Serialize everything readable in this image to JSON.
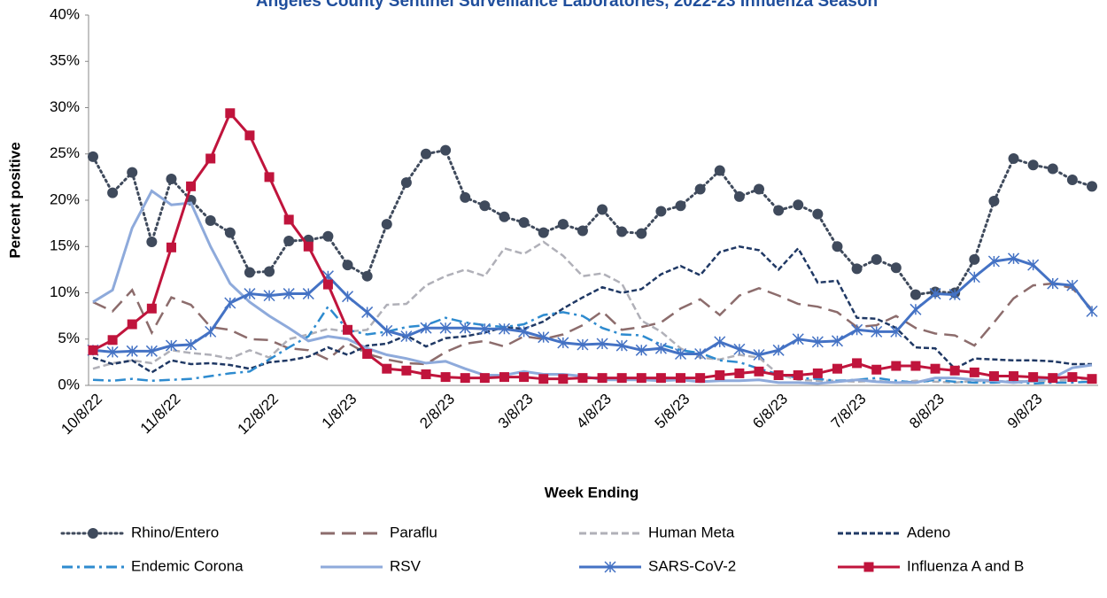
{
  "chart_data": {
    "type": "line",
    "title": "Angeles County Sentinel Surveillance Laboratories, 2022-23 Influenza Season",
    "y_label": "Percent positive",
    "x_label": "Week Ending",
    "categories": [
      "10/8/22",
      null,
      null,
      null,
      "11/8/22",
      null,
      null,
      null,
      null,
      "12/8/22",
      null,
      null,
      null,
      "1/8/23",
      null,
      null,
      null,
      null,
      "2/8/23",
      null,
      null,
      null,
      "3/8/23",
      null,
      null,
      null,
      "4/8/23",
      null,
      null,
      null,
      "5/8/23",
      null,
      null,
      null,
      null,
      "6/8/23",
      null,
      null,
      null,
      "7/8/23",
      null,
      null,
      null,
      "8/8/23",
      null,
      null,
      null,
      null,
      "9/8/23",
      null,
      null,
      null
    ],
    "ylim": [
      0,
      40
    ],
    "yticks": [
      {
        "value": 0,
        "label": "0%"
      },
      {
        "value": 5,
        "label": "5%"
      },
      {
        "value": 10,
        "label": "10%"
      },
      {
        "value": 15,
        "label": "15%"
      },
      {
        "value": 20,
        "label": "20%"
      },
      {
        "value": 25,
        "label": "25%"
      },
      {
        "value": 30,
        "label": "30%"
      },
      {
        "value": 35,
        "label": "35%"
      },
      {
        "value": 40,
        "label": "40%"
      }
    ],
    "grid": false,
    "legend": "bottom",
    "series": [
      {
        "name": "Rhino/Entero",
        "color": "#3f4a5c",
        "dash": "dotted",
        "marker": "circle",
        "values": [
          24.7,
          20.8,
          23.0,
          15.5,
          22.3,
          20.0,
          17.8,
          16.5,
          12.2,
          12.3,
          15.6,
          15.7,
          16.1,
          13.0,
          11.8,
          17.4,
          21.9,
          25.0,
          25.4,
          20.3,
          19.4,
          18.2,
          17.6,
          16.5,
          17.4,
          16.7,
          19.0,
          16.6,
          16.4,
          18.8,
          19.4,
          21.2,
          23.2,
          20.4,
          21.2,
          18.9,
          19.5,
          18.5,
          15.0,
          12.6,
          13.6,
          12.7,
          9.8,
          10.1,
          10.0,
          13.6,
          19.9,
          24.5,
          23.8,
          23.4,
          22.2,
          21.5
        ]
      },
      {
        "name": "Paraflu",
        "color": "#8c6c6c",
        "dash": "long",
        "marker": "none",
        "values": [
          9.0,
          8.0,
          10.3,
          5.7,
          9.5,
          8.7,
          6.3,
          6.0,
          5.0,
          4.9,
          4.0,
          3.8,
          2.8,
          4.6,
          3.4,
          2.8,
          2.4,
          2.3,
          3.6,
          4.5,
          4.8,
          4.2,
          5.3,
          5.0,
          5.5,
          6.5,
          8.0,
          6.0,
          6.3,
          6.8,
          8.3,
          9.3,
          7.6,
          9.7,
          10.5,
          9.7,
          8.8,
          8.5,
          7.9,
          6.3,
          6.5,
          7.5,
          6.2,
          5.6,
          5.4,
          4.3,
          6.8,
          9.4,
          10.8,
          11.0,
          10.5,
          8.2
        ]
      },
      {
        "name": "Human Meta",
        "color": "#b0b0b8",
        "dash": "dashed",
        "marker": "none",
        "values": [
          1.8,
          2.4,
          2.7,
          2.4,
          3.8,
          3.5,
          3.3,
          2.9,
          3.8,
          3.0,
          5.0,
          5.5,
          6.1,
          5.8,
          6.0,
          8.7,
          8.8,
          10.8,
          11.8,
          12.5,
          11.8,
          14.8,
          14.2,
          15.5,
          14.0,
          11.8,
          12.1,
          11.0,
          7.0,
          5.8,
          4.0,
          3.0,
          2.8,
          3.3,
          3.0,
          1.2,
          0.6,
          0.5,
          0.5,
          0.4,
          0.5,
          0.3,
          0.5,
          0.4,
          0.3,
          0.5,
          0.4,
          0.5,
          0.4,
          0.5,
          0.6,
          0.7
        ]
      },
      {
        "name": "Adeno",
        "color": "#1f3864",
        "dash": "short",
        "marker": "none",
        "values": [
          3.0,
          2.3,
          2.7,
          1.4,
          2.7,
          2.3,
          2.4,
          2.2,
          1.8,
          2.5,
          2.7,
          3.1,
          4.1,
          3.3,
          4.3,
          4.5,
          5.4,
          4.2,
          5.1,
          5.3,
          5.7,
          6.3,
          6.1,
          6.9,
          8.3,
          9.5,
          10.6,
          10.0,
          10.4,
          12.0,
          12.9,
          11.9,
          14.4,
          15.0,
          14.6,
          12.5,
          14.8,
          11.1,
          11.3,
          7.3,
          7.2,
          6.2,
          4.1,
          4.0,
          1.8,
          2.9,
          2.8,
          2.7,
          2.7,
          2.6,
          2.3,
          2.3
        ]
      },
      {
        "name": "Endemic Corona",
        "color": "#2e8bcf",
        "dash": "dashdot",
        "marker": "none",
        "values": [
          0.6,
          0.5,
          0.7,
          0.5,
          0.6,
          0.7,
          1.0,
          1.3,
          1.5,
          2.8,
          4.1,
          5.3,
          8.5,
          6.0,
          5.5,
          5.8,
          6.3,
          6.5,
          7.3,
          6.8,
          6.5,
          6.3,
          6.6,
          7.6,
          7.9,
          7.5,
          6.2,
          5.5,
          5.4,
          4.4,
          3.8,
          3.5,
          2.7,
          2.5,
          1.8,
          1.2,
          0.8,
          0.7,
          0.5,
          0.6,
          0.8,
          0.5,
          0.3,
          0.6,
          0.4,
          0.3,
          0.3,
          0.4,
          0.2,
          0.3,
          0.3,
          0.4
        ]
      },
      {
        "name": "RSV",
        "color": "#8eaadb",
        "dash": "solid",
        "marker": "none",
        "values": [
          9.0,
          10.3,
          17.0,
          21.0,
          19.5,
          19.7,
          15.0,
          11.0,
          9.0,
          7.5,
          6.2,
          4.8,
          5.3,
          5.0,
          4.0,
          3.3,
          2.9,
          2.4,
          2.6,
          1.8,
          1.1,
          1.1,
          1.5,
          1.2,
          1.2,
          1.0,
          0.6,
          0.6,
          0.6,
          0.5,
          0.6,
          0.4,
          0.5,
          0.5,
          0.6,
          0.3,
          0.3,
          0.2,
          0.4,
          0.6,
          0.4,
          0.3,
          0.3,
          0.8,
          0.8,
          0.6,
          0.5,
          0.3,
          0.5,
          0.8,
          1.9,
          2.2
        ]
      },
      {
        "name": "SARS-CoV-2",
        "color": "#4472c4",
        "dash": "solid",
        "marker": "asterisk",
        "values": [
          3.8,
          3.6,
          3.7,
          3.7,
          4.3,
          4.4,
          5.8,
          8.9,
          9.9,
          9.7,
          9.9,
          9.9,
          11.8,
          9.6,
          7.9,
          5.9,
          5.3,
          6.2,
          6.2,
          6.2,
          6.1,
          6.1,
          5.8,
          5.2,
          4.6,
          4.4,
          4.5,
          4.3,
          3.8,
          4.0,
          3.4,
          3.4,
          4.7,
          3.9,
          3.3,
          3.8,
          5.0,
          4.7,
          4.8,
          6.0,
          5.8,
          5.8,
          8.2,
          9.9,
          9.8,
          11.7,
          13.4,
          13.7,
          13.0,
          11.0,
          10.8,
          8.0
        ]
      },
      {
        "name": "Influenza A and B",
        "color": "#c0143c",
        "dash": "solid",
        "marker": "square",
        "values": [
          3.8,
          4.9,
          6.6,
          8.3,
          14.9,
          21.5,
          24.5,
          29.4,
          27.0,
          22.5,
          17.9,
          15.0,
          10.9,
          6.0,
          3.4,
          1.8,
          1.6,
          1.2,
          0.9,
          0.8,
          0.8,
          0.9,
          0.9,
          0.7,
          0.7,
          0.8,
          0.8,
          0.8,
          0.8,
          0.8,
          0.8,
          0.8,
          1.1,
          1.3,
          1.5,
          1.1,
          1.1,
          1.3,
          1.8,
          2.4,
          1.7,
          2.1,
          2.1,
          1.8,
          1.6,
          1.4,
          1.0,
          1.0,
          0.9,
          0.8,
          0.9,
          0.7
        ]
      }
    ]
  }
}
